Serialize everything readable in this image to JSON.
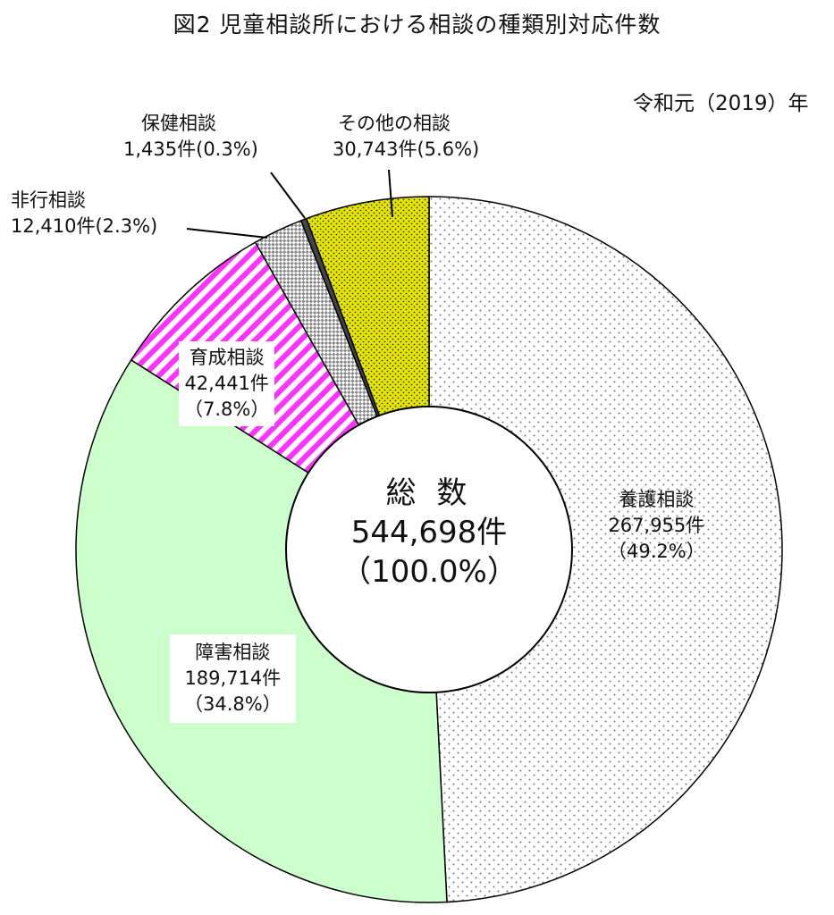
{
  "chart_data": {
    "type": "pie",
    "title": "図2  児童相談所における相談の種類別対応件数",
    "subtitle": "令和元（2019）年",
    "center_label": {
      "name": "総 数",
      "count": "544,698件",
      "pct": "（100.0%）"
    },
    "total": 544698,
    "slices": [
      {
        "name": "養護相談",
        "value": 267955,
        "count": "267,955件",
        "pct": "（49.2%）",
        "percent": 49.2,
        "color": "#ffffff",
        "pattern": "dots"
      },
      {
        "name": "障害相談",
        "value": 189714,
        "count": "189,714件",
        "pct": "（34.8%）",
        "percent": 34.8,
        "color": "#ccffcc",
        "pattern": "solid"
      },
      {
        "name": "育成相談",
        "value": 42441,
        "count": "42,441件",
        "pct": "（7.8%）",
        "percent": 7.8,
        "color": "#ff44ff",
        "pattern": "stripes"
      },
      {
        "name": "非行相談",
        "value": 12410,
        "count": "12,410件",
        "pct": "(2.3%)",
        "percent": 2.3,
        "color": "#999999",
        "pattern": "checker"
      },
      {
        "name": "保健相談",
        "value": 1435,
        "count": "1,435件",
        "pct": "(0.3%)",
        "percent": 0.3,
        "color": "#555555",
        "pattern": "dark"
      },
      {
        "name": "その他の相談",
        "value": 30743,
        "count": "30,743件",
        "pct": "(5.6%)",
        "percent": 5.6,
        "color": "#e0e000",
        "pattern": "yellowdots"
      }
    ]
  }
}
